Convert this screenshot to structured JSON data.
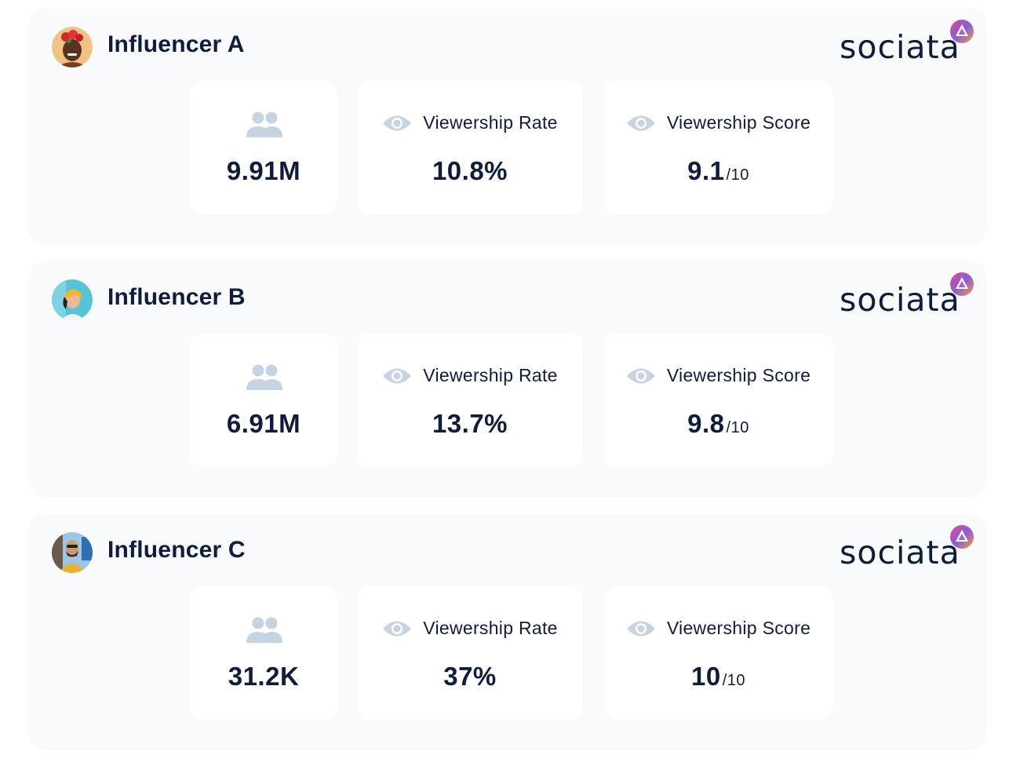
{
  "brand": {
    "name": "sociata"
  },
  "influencers": [
    {
      "name": "Influencer A",
      "followers": "9.91M",
      "viewership_rate_label": "Viewership Rate",
      "viewership_rate": "10.8%",
      "viewership_score_label": "Viewership Score",
      "viewership_score": "9.1",
      "score_denominator": "/10"
    },
    {
      "name": "Influencer B",
      "followers": "6.91M",
      "viewership_rate_label": "Viewership Rate",
      "viewership_rate": "13.7%",
      "viewership_score_label": "Viewership Score",
      "viewership_score": "9.8",
      "score_denominator": "/10"
    },
    {
      "name": "Influencer C",
      "followers": "31.2K",
      "viewership_rate_label": "Viewership Rate",
      "viewership_rate": "37%",
      "viewership_score_label": "Viewership Score",
      "viewership_score": "10",
      "score_denominator": "/10"
    }
  ],
  "icons": {
    "followers": "people-icon",
    "viewership": "eye-icon",
    "brand": "sociata-logo-icon"
  },
  "colors": {
    "text": "#0f1d3d",
    "icon": "#c5d3e2",
    "card_bg": "#f8fafc",
    "stat_bg": "#ffffff"
  }
}
